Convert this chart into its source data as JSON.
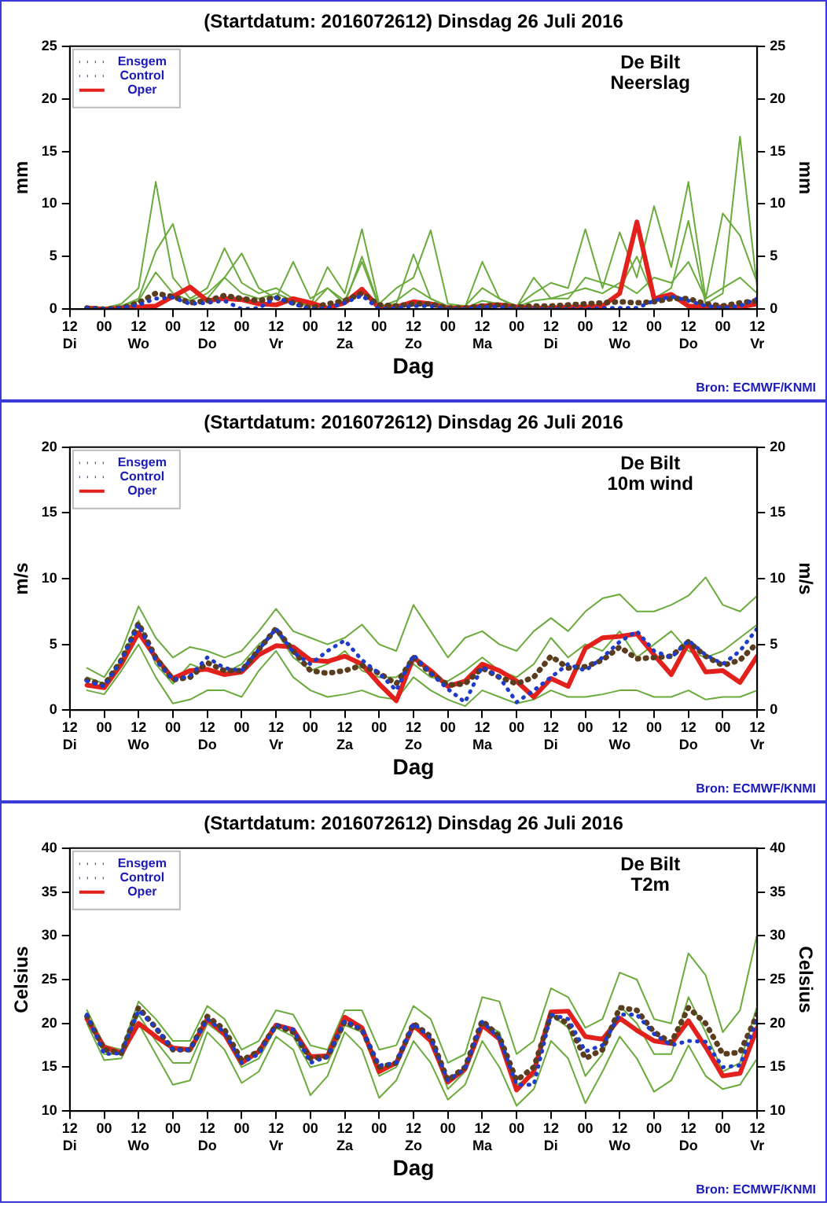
{
  "chart_data": [
    {
      "type": "line",
      "title": "(Startdatum: 2016072612) Dinsdag 26 Juli 2016",
      "xlabel": "Dag",
      "ylabel": "mm",
      "y2label": "mm",
      "annotations": [
        "De Bilt",
        "Neerslag",
        "Bron: ECMWF/KNMI"
      ],
      "legend": "top left",
      "marker": "none",
      "x": [
        "2016-07-26T18:00",
        "2016-07-27T00:00",
        "2016-07-27T06:00",
        "2016-07-27T12:00",
        "2016-07-27T18:00",
        "2016-07-28T00:00",
        "2016-07-28T06:00",
        "2016-07-28T12:00",
        "2016-07-28T18:00",
        "2016-07-29T00:00",
        "2016-07-29T06:00",
        "2016-07-29T12:00",
        "2016-07-29T18:00",
        "2016-07-30T00:00",
        "2016-07-30T06:00",
        "2016-07-30T12:00",
        "2016-07-30T18:00",
        "2016-07-31T00:00",
        "2016-07-31T06:00",
        "2016-07-31T12:00",
        "2016-07-31T18:00",
        "2016-08-01T00:00",
        "2016-08-01T06:00",
        "2016-08-01T12:00",
        "2016-08-01T18:00",
        "2016-08-02T00:00",
        "2016-08-02T06:00",
        "2016-08-02T12:00",
        "2016-08-02T18:00",
        "2016-08-03T00:00",
        "2016-08-03T06:00",
        "2016-08-03T12:00",
        "2016-08-03T18:00",
        "2016-08-04T00:00",
        "2016-08-04T06:00",
        "2016-08-04T12:00",
        "2016-08-04T18:00",
        "2016-08-05T00:00",
        "2016-08-05T06:00",
        "2016-08-05T12:00"
      ],
      "xlim": [
        "2016-07-26T12:00",
        "2016-08-05T12:00"
      ],
      "xticks": [
        {
          "value": "2016-07-26T12:00",
          "label": "12\nDi"
        },
        {
          "value": "2016-07-27T00:00",
          "label": "00"
        },
        {
          "value": "2016-07-27T12:00",
          "label": "12\nWo"
        },
        {
          "value": "2016-07-28T00:00",
          "label": "00"
        },
        {
          "value": "2016-07-28T12:00",
          "label": "12\nDo"
        },
        {
          "value": "2016-07-29T00:00",
          "label": "00"
        },
        {
          "value": "2016-07-29T12:00",
          "label": "12\nVr"
        },
        {
          "value": "2016-07-30T00:00",
          "label": "00"
        },
        {
          "value": "2016-07-30T12:00",
          "label": "12\nZa"
        },
        {
          "value": "2016-07-31T00:00",
          "label": "00"
        },
        {
          "value": "2016-07-31T12:00",
          "label": "12\nZo"
        },
        {
          "value": "2016-08-01T00:00",
          "label": "00"
        },
        {
          "value": "2016-08-01T12:00",
          "label": "12\nMa"
        },
        {
          "value": "2016-08-02T00:00",
          "label": "00"
        },
        {
          "value": "2016-08-02T12:00",
          "label": "12\nDi"
        },
        {
          "value": "2016-08-03T00:00",
          "label": "00"
        },
        {
          "value": "2016-08-03T12:00",
          "label": "12\nWo"
        },
        {
          "value": "2016-08-04T00:00",
          "label": "00"
        },
        {
          "value": "2016-08-04T12:00",
          "label": "12\nDo"
        },
        {
          "value": "2016-08-05T00:00",
          "label": "00"
        },
        {
          "value": "2016-08-05T12:00",
          "label": "12\nVr"
        }
      ],
      "ylim": [
        0,
        25
      ],
      "yticks": [
        0,
        5,
        10,
        15,
        20,
        25
      ],
      "y2lim": [
        0,
        25
      ],
      "y2ticks": [
        0,
        5,
        10,
        15,
        20,
        25
      ],
      "series": [
        {
          "name": "Ensgem",
          "color": "#5a3d1e",
          "line_style": "dotted",
          "values": [
            0.1,
            0,
            0.1,
            0.6,
            1.5,
            1.2,
            0.6,
            0.8,
            1.3,
            1.0,
            0.8,
            1.1,
            0.6,
            0.1,
            0.5,
            0.8,
            1.5,
            0.4,
            0.3,
            0.5,
            0.5,
            0.1,
            0.1,
            0.3,
            0.4,
            0.2,
            0.3,
            0.3,
            0.4,
            0.5,
            0.6,
            0.7,
            0.6,
            0.7,
            1.0,
            1.0,
            0.5,
            0.3,
            0.6,
            0.8
          ]
        },
        {
          "name": "Control",
          "color": "#1f3cc8",
          "line_style": "dotted",
          "values": [
            0.1,
            0,
            0.1,
            0.4,
            1.0,
            1.1,
            0.5,
            0.6,
            0.8,
            0,
            0.1,
            1.1,
            0.5,
            0,
            0.1,
            0.6,
            1.3,
            0,
            0.1,
            0.3,
            0.3,
            0,
            0,
            0.2,
            0.2,
            0,
            0,
            0,
            0,
            0,
            0.1,
            0.1,
            0.1,
            0.8,
            1.2,
            0.8,
            0.3,
            0.1,
            0.3,
            1.0
          ]
        },
        {
          "name": "Oper",
          "color": "#e3211c",
          "line_style": "solid",
          "values": [
            0.1,
            0,
            0.1,
            0.2,
            0.3,
            1.2,
            2.1,
            0.8,
            1.0,
            0.9,
            0.5,
            0.4,
            1.0,
            0.6,
            0.1,
            0.6,
            1.9,
            0.1,
            0.2,
            0.7,
            0.5,
            0.1,
            0.1,
            0.3,
            0.4,
            0.2,
            0.1,
            0.1,
            0.2,
            0.2,
            0.3,
            1.5,
            8.3,
            1.0,
            1.4,
            0.3,
            0.2,
            0.2,
            0.2,
            0.5
          ]
        },
        {
          "color": "#6aab3c",
          "line_style": "solid",
          "values": [
            0.2,
            0.1,
            0.5,
            2.0,
            12.1,
            3.0,
            1.0,
            2.0,
            5.8,
            2.5,
            1.5,
            2.0,
            1.0,
            0.3,
            4.0,
            1.5,
            7.6,
            0.5,
            2.0,
            3.0,
            7.5,
            0.5,
            0.3,
            2.0,
            1.0,
            0.3,
            1.5,
            2.5,
            2.0,
            7.6,
            2.0,
            7.3,
            3.0,
            9.8,
            4.0,
            12.1,
            1.0,
            9.1,
            7.0,
            2.5
          ]
        },
        {
          "color": "#6aab3c",
          "line_style": "solid",
          "values": [
            0.1,
            0,
            0.3,
            1.0,
            5.5,
            8.1,
            2.0,
            1.0,
            3.0,
            5.3,
            2.0,
            1.0,
            4.5,
            1.0,
            2.0,
            0.5,
            5.0,
            0.3,
            0.5,
            5.2,
            1.0,
            0.3,
            0.2,
            4.5,
            1.0,
            0.2,
            3.0,
            1.0,
            1.0,
            3.0,
            2.5,
            2.0,
            5.0,
            1.0,
            2.0,
            8.4,
            0.5,
            1.5,
            16.4,
            2.0
          ]
        },
        {
          "color": "#6aab3c",
          "line_style": "solid",
          "values": [
            0.1,
            0,
            0.2,
            0.8,
            3.5,
            1.5,
            0.8,
            1.5,
            3.0,
            1.5,
            1.0,
            1.5,
            0.8,
            0.2,
            2.0,
            0.8,
            4.5,
            0.2,
            0.8,
            2.0,
            1.0,
            0.2,
            0.1,
            0.8,
            0.5,
            0.2,
            0.8,
            1.0,
            1.5,
            2.0,
            1.5,
            2.5,
            1.5,
            3.0,
            2.5,
            4.5,
            1.0,
            2.0,
            3.0,
            1.5
          ]
        }
      ]
    },
    {
      "type": "line",
      "title": "(Startdatum: 2016072612) Dinsdag 26 Juli 2016",
      "xlabel": "Dag",
      "ylabel": "m/s",
      "y2label": "m/s",
      "annotations": [
        "De Bilt",
        "10m wind",
        "Bron: ECMWF/KNMI"
      ],
      "legend": "top left",
      "marker": "none",
      "x": [
        "2016-07-26T18:00",
        "2016-07-27T00:00",
        "2016-07-27T06:00",
        "2016-07-27T12:00",
        "2016-07-27T18:00",
        "2016-07-28T00:00",
        "2016-07-28T06:00",
        "2016-07-28T12:00",
        "2016-07-28T18:00",
        "2016-07-29T00:00",
        "2016-07-29T06:00",
        "2016-07-29T12:00",
        "2016-07-29T18:00",
        "2016-07-30T00:00",
        "2016-07-30T06:00",
        "2016-07-30T12:00",
        "2016-07-30T18:00",
        "2016-07-31T00:00",
        "2016-07-31T06:00",
        "2016-07-31T12:00",
        "2016-07-31T18:00",
        "2016-08-01T00:00",
        "2016-08-01T06:00",
        "2016-08-01T12:00",
        "2016-08-01T18:00",
        "2016-08-02T00:00",
        "2016-08-02T06:00",
        "2016-08-02T12:00",
        "2016-08-02T18:00",
        "2016-08-03T00:00",
        "2016-08-03T06:00",
        "2016-08-03T12:00",
        "2016-08-03T18:00",
        "2016-08-04T00:00",
        "2016-08-04T06:00",
        "2016-08-04T12:00",
        "2016-08-04T18:00",
        "2016-08-05T00:00",
        "2016-08-05T06:00",
        "2016-08-05T12:00"
      ],
      "xlim": [
        "2016-07-26T12:00",
        "2016-08-05T12:00"
      ],
      "xticks": [
        {
          "value": "2016-07-26T12:00",
          "label": "12\nDi"
        },
        {
          "value": "2016-07-27T00:00",
          "label": "00"
        },
        {
          "value": "2016-07-27T12:00",
          "label": "12\nWo"
        },
        {
          "value": "2016-07-28T00:00",
          "label": "00"
        },
        {
          "value": "2016-07-28T12:00",
          "label": "12\nDo"
        },
        {
          "value": "2016-07-29T00:00",
          "label": "00"
        },
        {
          "value": "2016-07-29T12:00",
          "label": "12\nVr"
        },
        {
          "value": "2016-07-30T00:00",
          "label": "00"
        },
        {
          "value": "2016-07-30T12:00",
          "label": "12\nZa"
        },
        {
          "value": "2016-07-31T00:00",
          "label": "00"
        },
        {
          "value": "2016-07-31T12:00",
          "label": "12\nZo"
        },
        {
          "value": "2016-08-01T00:00",
          "label": "00"
        },
        {
          "value": "2016-08-01T12:00",
          "label": "12\nMa"
        },
        {
          "value": "2016-08-02T00:00",
          "label": "00"
        },
        {
          "value": "2016-08-02T12:00",
          "label": "12\nDi"
        },
        {
          "value": "2016-08-03T00:00",
          "label": "00"
        },
        {
          "value": "2016-08-03T12:00",
          "label": "12\nWo"
        },
        {
          "value": "2016-08-04T00:00",
          "label": "00"
        },
        {
          "value": "2016-08-04T12:00",
          "label": "12\nDo"
        },
        {
          "value": "2016-08-05T00:00",
          "label": "00"
        },
        {
          "value": "2016-08-05T12:00",
          "label": "12\nVr"
        }
      ],
      "ylim": [
        0,
        20
      ],
      "yticks": [
        0,
        5,
        10,
        15,
        20
      ],
      "y2lim": [
        0,
        20
      ],
      "y2ticks": [
        0,
        5,
        10,
        15,
        20
      ],
      "series": [
        {
          "name": "Ensgem",
          "color": "#5a3d1e",
          "line_style": "dotted",
          "values": [
            2.3,
            1.9,
            3.8,
            6.6,
            4.0,
            2.3,
            2.5,
            3.6,
            3.0,
            3.0,
            4.6,
            6.2,
            4.5,
            3.0,
            2.8,
            3.0,
            3.4,
            2.8,
            2.0,
            4.0,
            2.8,
            1.9,
            2.0,
            3.2,
            2.5,
            2.0,
            2.5,
            4.1,
            3.2,
            3.3,
            3.8,
            4.8,
            3.9,
            4.0,
            4.1,
            5.2,
            4.1,
            3.4,
            3.8,
            5.1
          ]
        },
        {
          "name": "Control",
          "color": "#1f3cc8",
          "line_style": "dotted",
          "values": [
            2.2,
            1.8,
            3.8,
            6.5,
            3.8,
            2.3,
            2.6,
            4.0,
            3.2,
            3.0,
            4.6,
            6.2,
            4.4,
            3.5,
            4.5,
            5.3,
            3.8,
            2.8,
            1.5,
            4.2,
            2.8,
            1.6,
            0.6,
            3.3,
            2.5,
            0.6,
            1.5,
            2.5,
            3.5,
            3.0,
            4.0,
            5.2,
            6.0,
            4.5,
            4.0,
            5.3,
            4.2,
            3.5,
            4.5,
            6.2
          ]
        },
        {
          "name": "Oper",
          "color": "#e3211c",
          "line_style": "solid",
          "values": [
            1.9,
            1.7,
            3.5,
            5.9,
            4.0,
            2.4,
            3.0,
            3.1,
            2.7,
            2.9,
            4.2,
            4.9,
            4.8,
            3.8,
            3.7,
            4.1,
            3.5,
            2.0,
            0.7,
            4.0,
            3.0,
            1.8,
            2.2,
            3.5,
            3.0,
            2.2,
            1.0,
            2.4,
            1.8,
            4.7,
            5.5,
            5.6,
            5.8,
            4.2,
            2.7,
            5.1,
            2.9,
            3.0,
            2.1,
            4.1
          ]
        },
        {
          "color": "#6aab3c",
          "line_style": "solid",
          "values": [
            3.2,
            2.5,
            4.5,
            7.9,
            5.5,
            4.0,
            4.8,
            4.5,
            4.0,
            4.5,
            6.0,
            7.7,
            6.0,
            5.5,
            5.0,
            5.5,
            6.5,
            5.0,
            4.5,
            8.0,
            6.0,
            4.0,
            5.5,
            6.0,
            5.0,
            4.5,
            6.0,
            7.0,
            6.0,
            7.5,
            8.5,
            8.8,
            7.5,
            7.5,
            8.0,
            8.7,
            10.1,
            8.0,
            7.5,
            8.7
          ]
        },
        {
          "color": "#6aab3c",
          "line_style": "solid",
          "values": [
            1.5,
            1.2,
            3.0,
            5.0,
            2.5,
            0.5,
            0.8,
            1.5,
            1.5,
            1.0,
            3.0,
            4.5,
            2.5,
            1.5,
            1.0,
            1.2,
            1.5,
            1.0,
            0.8,
            2.5,
            1.5,
            0.8,
            0.3,
            1.5,
            1.0,
            0.5,
            0.8,
            1.5,
            1.0,
            1.0,
            1.2,
            1.5,
            1.5,
            1.0,
            1.0,
            1.5,
            0.8,
            1.0,
            1.0,
            1.5
          ]
        },
        {
          "color": "#6aab3c",
          "line_style": "solid",
          "values": [
            2.5,
            2.0,
            3.8,
            6.8,
            3.5,
            2.0,
            3.5,
            3.0,
            2.8,
            3.5,
            5.0,
            6.0,
            4.0,
            3.0,
            3.5,
            4.5,
            3.0,
            2.5,
            2.5,
            3.5,
            2.5,
            2.2,
            3.0,
            4.0,
            3.0,
            2.5,
            3.5,
            5.5,
            4.0,
            5.0,
            4.5,
            6.0,
            4.0,
            5.0,
            6.0,
            4.5,
            4.0,
            4.5,
            5.5,
            6.5
          ]
        }
      ]
    },
    {
      "type": "line",
      "title": "(Startdatum: 2016072612) Dinsdag 26 Juli 2016",
      "xlabel": "Dag",
      "ylabel": "Celsius",
      "y2label": "Celsius",
      "annotations": [
        "De Bilt",
        "T2m",
        "Bron: ECMWF/KNMI"
      ],
      "legend": "top left",
      "marker": "none",
      "x": [
        "2016-07-26T18:00",
        "2016-07-27T00:00",
        "2016-07-27T06:00",
        "2016-07-27T12:00",
        "2016-07-27T18:00",
        "2016-07-28T00:00",
        "2016-07-28T06:00",
        "2016-07-28T12:00",
        "2016-07-28T18:00",
        "2016-07-29T00:00",
        "2016-07-29T06:00",
        "2016-07-29T12:00",
        "2016-07-29T18:00",
        "2016-07-30T00:00",
        "2016-07-30T06:00",
        "2016-07-30T12:00",
        "2016-07-30T18:00",
        "2016-07-31T00:00",
        "2016-07-31T06:00",
        "2016-07-31T12:00",
        "2016-07-31T18:00",
        "2016-08-01T00:00",
        "2016-08-01T06:00",
        "2016-08-01T12:00",
        "2016-08-01T18:00",
        "2016-08-02T00:00",
        "2016-08-02T06:00",
        "2016-08-02T12:00",
        "2016-08-02T18:00",
        "2016-08-03T00:00",
        "2016-08-03T06:00",
        "2016-08-03T12:00",
        "2016-08-03T18:00",
        "2016-08-04T00:00",
        "2016-08-04T06:00",
        "2016-08-04T12:00",
        "2016-08-04T18:00",
        "2016-08-05T00:00",
        "2016-08-05T06:00",
        "2016-08-05T12:00"
      ],
      "xlim": [
        "2016-07-26T12:00",
        "2016-08-05T12:00"
      ],
      "xticks": [
        {
          "value": "2016-07-26T12:00",
          "label": "12\nDi"
        },
        {
          "value": "2016-07-27T00:00",
          "label": "00"
        },
        {
          "value": "2016-07-27T12:00",
          "label": "12\nWo"
        },
        {
          "value": "2016-07-28T00:00",
          "label": "00"
        },
        {
          "value": "2016-07-28T12:00",
          "label": "12\nDo"
        },
        {
          "value": "2016-07-29T00:00",
          "label": "00"
        },
        {
          "value": "2016-07-29T12:00",
          "label": "12\nVr"
        },
        {
          "value": "2016-07-30T00:00",
          "label": "00"
        },
        {
          "value": "2016-07-30T12:00",
          "label": "12\nZa"
        },
        {
          "value": "2016-07-31T00:00",
          "label": "00"
        },
        {
          "value": "2016-07-31T12:00",
          "label": "12\nZo"
        },
        {
          "value": "2016-08-01T00:00",
          "label": "00"
        },
        {
          "value": "2016-08-01T12:00",
          "label": "12\nMa"
        },
        {
          "value": "2016-08-02T00:00",
          "label": "00"
        },
        {
          "value": "2016-08-02T12:00",
          "label": "12\nDi"
        },
        {
          "value": "2016-08-03T00:00",
          "label": "00"
        },
        {
          "value": "2016-08-03T12:00",
          "label": "12\nWo"
        },
        {
          "value": "2016-08-04T00:00",
          "label": "00"
        },
        {
          "value": "2016-08-04T12:00",
          "label": "12\nDo"
        },
        {
          "value": "2016-08-05T00:00",
          "label": "00"
        },
        {
          "value": "2016-08-05T12:00",
          "label": "12\nVr"
        }
      ],
      "ylim": [
        10,
        40
      ],
      "yticks": [
        10,
        15,
        20,
        25,
        30,
        35,
        40
      ],
      "y2lim": [
        10,
        40
      ],
      "y2ticks": [
        10,
        15,
        20,
        25,
        30,
        35,
        40
      ],
      "series": [
        {
          "name": "Ensgem",
          "color": "#5a3d1e",
          "line_style": "dotted",
          "values": [
            20.8,
            17.0,
            16.6,
            21.8,
            19.5,
            17.0,
            17.0,
            20.8,
            19.3,
            15.8,
            16.8,
            19.8,
            19.0,
            16.0,
            16.2,
            20.2,
            19.3,
            15.0,
            15.5,
            20.0,
            18.5,
            13.5,
            15.0,
            20.3,
            18.5,
            13.5,
            15.0,
            21.0,
            20.0,
            16.0,
            17.0,
            21.8,
            21.5,
            19.0,
            17.8,
            21.8,
            20.0,
            16.5,
            16.7,
            21.0
          ]
        },
        {
          "name": "Control",
          "color": "#1f3cc8",
          "line_style": "dotted",
          "values": [
            21.0,
            16.5,
            16.6,
            21.5,
            19.5,
            17.0,
            17.0,
            20.5,
            19.0,
            15.5,
            16.5,
            19.8,
            19.3,
            15.5,
            16.2,
            20.3,
            19.3,
            15.2,
            15.5,
            20.0,
            18.3,
            13.5,
            14.8,
            20.2,
            18.3,
            13.0,
            13.0,
            21.0,
            20.5,
            16.8,
            17.5,
            21.0,
            21.0,
            18.8,
            17.5,
            18.0,
            17.9,
            15.0,
            15.2,
            20.5
          ]
        },
        {
          "name": "Oper",
          "color": "#e3211c",
          "line_style": "solid",
          "values": [
            20.5,
            17.3,
            16.6,
            20.0,
            18.5,
            17.2,
            17.0,
            20.5,
            18.8,
            15.5,
            16.8,
            19.8,
            19.3,
            16.2,
            16.3,
            20.7,
            19.5,
            14.5,
            15.5,
            19.8,
            18.0,
            13.3,
            14.8,
            19.8,
            18.2,
            12.4,
            14.5,
            21.3,
            21.4,
            18.5,
            18.2,
            20.6,
            19.2,
            18.0,
            17.7,
            20.3,
            17.3,
            14.0,
            14.3,
            19.5
          ]
        },
        {
          "color": "#6aab3c",
          "line_style": "solid",
          "values": [
            21.5,
            17.5,
            17.0,
            22.5,
            20.5,
            18.0,
            18.0,
            22.0,
            20.5,
            17.0,
            18.0,
            21.5,
            21.0,
            17.5,
            17.0,
            21.5,
            21.5,
            17.0,
            17.5,
            22.0,
            20.5,
            15.5,
            16.5,
            23.0,
            22.5,
            16.5,
            18.0,
            24.0,
            23.0,
            19.5,
            20.5,
            25.8,
            25.0,
            20.5,
            20.0,
            28.0,
            25.5,
            19.0,
            21.5,
            30.2
          ]
        },
        {
          "color": "#6aab3c",
          "line_style": "solid",
          "values": [
            20.0,
            15.8,
            16.0,
            20.0,
            16.5,
            13.0,
            13.5,
            19.0,
            17.0,
            13.2,
            14.5,
            18.5,
            17.0,
            11.8,
            14.0,
            19.0,
            17.0,
            11.5,
            13.5,
            18.0,
            15.5,
            11.3,
            13.0,
            18.0,
            15.0,
            10.6,
            12.5,
            18.0,
            16.0,
            10.9,
            14.5,
            18.5,
            16.0,
            12.2,
            13.5,
            17.5,
            14.0,
            12.5,
            13.0,
            16.0
          ]
        },
        {
          "color": "#6aab3c",
          "line_style": "solid",
          "values": [
            20.8,
            16.5,
            16.5,
            21.0,
            18.0,
            15.5,
            15.5,
            20.0,
            18.5,
            15.0,
            16.0,
            19.5,
            18.5,
            15.0,
            15.5,
            19.8,
            19.0,
            14.0,
            15.0,
            19.5,
            18.0,
            12.5,
            14.5,
            20.0,
            19.0,
            13.0,
            14.0,
            21.0,
            19.5,
            14.0,
            16.5,
            22.0,
            20.0,
            16.5,
            16.5,
            23.0,
            19.0,
            14.5,
            15.5,
            22.0
          ]
        }
      ]
    }
  ]
}
